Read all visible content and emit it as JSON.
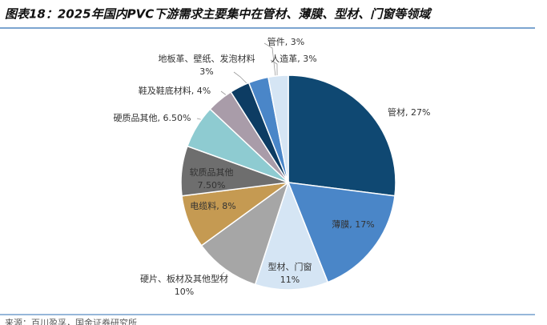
{
  "chart_data": {
    "type": "pie",
    "title": "图表18：2025年国内PVC下游需求主要集中在管材、薄膜、型材、门窗等领域",
    "categories": [
      "管材",
      "薄膜",
      "型材、门窗",
      "硬片、板材及其他型材",
      "电缆料",
      "软质品其他",
      "硬质品其他",
      "鞋及鞋底材料",
      "地板革、壁纸、发泡材料",
      "管件",
      "人造革"
    ],
    "values": [
      27,
      17,
      11,
      10,
      8,
      7.5,
      6.5,
      4,
      3,
      3,
      3
    ],
    "value_labels": [
      "27%",
      "17%",
      "11%",
      "10%",
      "8%",
      "7.50%",
      "6.50%",
      "4%",
      "3%",
      "3%",
      "3%"
    ],
    "label_separator": ", ",
    "colors": [
      "#0f4872",
      "#4a86c8",
      "#d5e5f4",
      "#a6a6a6",
      "#c59a52",
      "#6e6e6e",
      "#8ecbd1",
      "#a99ca9",
      "#0d3c63",
      "#4a86c8",
      "#d5e5f4"
    ],
    "source": "来源：百川盈孚，国金证券研究所"
  }
}
